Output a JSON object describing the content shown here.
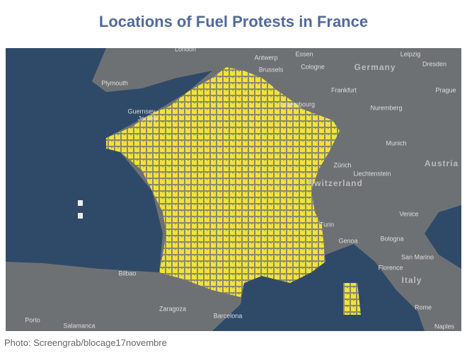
{
  "header": {
    "title": "Locations of Fuel Protests in France"
  },
  "caption": "Photo: Screengrab/blocage17novembre",
  "map": {
    "labels": [
      "London",
      "Antwerp",
      "Essen",
      "Cologne",
      "Leipzig",
      "Dresden",
      "Germany",
      "Brussels",
      "Frankfurt",
      "Plymouth",
      "Luxembourg",
      "Prague",
      "Nuremberg",
      "Guernsey",
      "Jersey",
      "Munich",
      "Zürich",
      "Liechtenstein",
      "Austria",
      "Switzerland",
      "Venice",
      "Turin",
      "Genoa",
      "Bologna",
      "San Marino",
      "Florence",
      "Italy",
      "Rome",
      "Naples",
      "Bilbao",
      "Zaragoza",
      "Barcelona",
      "Porto",
      "Salamanca"
    ]
  }
}
